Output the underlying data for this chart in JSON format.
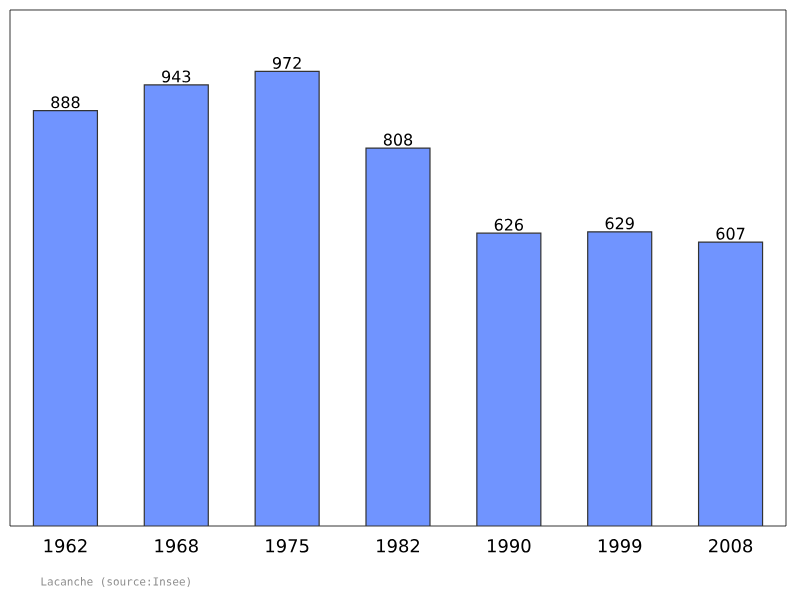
{
  "chart_data": {
    "type": "bar",
    "categories": [
      "1962",
      "1968",
      "1975",
      "1982",
      "1990",
      "1999",
      "2008"
    ],
    "values": [
      888,
      943,
      972,
      808,
      626,
      629,
      607
    ],
    "color": "#7094ff",
    "data_labels": true,
    "tick_labels": "x",
    "annotations": [
      "Lacanche   (source:Insee)"
    ]
  }
}
